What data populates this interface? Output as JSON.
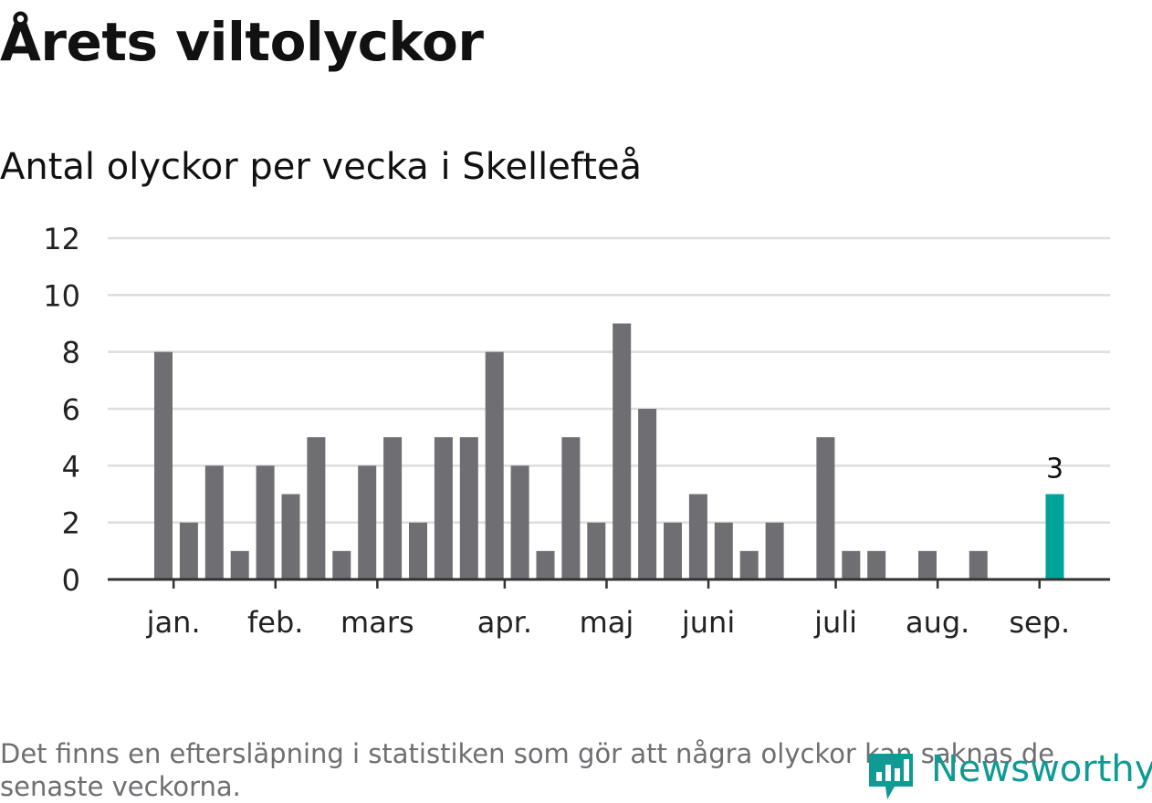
{
  "title": "Årets viltolyckor",
  "subtitle": "Antal olyckor per vecka i Skellefteå",
  "footnote": "Det finns en eftersläpning i statistiken som gör att några olyckor kan saknas de senaste veckorna.",
  "logo": {
    "text": "Newsworthy",
    "icon": "newsworthy-logo-icon",
    "color": "#0f9a94"
  },
  "colors": {
    "bar": "#6f6e73",
    "highlight": "#00a39a",
    "grid": "#dddddd",
    "axis": "#333333"
  },
  "chart_data": {
    "type": "bar",
    "title": "Årets viltolyckor",
    "subtitle": "Antal olyckor per vecka i Skellefteå",
    "xlabel": "",
    "ylabel": "",
    "ylim": [
      0,
      12
    ],
    "yticks": [
      0,
      2,
      4,
      6,
      8,
      10,
      12
    ],
    "grid": true,
    "weeks": [
      2,
      3,
      4,
      5,
      6,
      7,
      8,
      9,
      10,
      11,
      12,
      13,
      14,
      15,
      16,
      17,
      18,
      19,
      20,
      21,
      22,
      23,
      24,
      25,
      26,
      27,
      28,
      29,
      30,
      31,
      32,
      33,
      34,
      35,
      36,
      37
    ],
    "values": [
      8,
      2,
      4,
      1,
      4,
      3,
      5,
      1,
      4,
      5,
      2,
      5,
      5,
      8,
      4,
      1,
      5,
      2,
      9,
      6,
      2,
      3,
      2,
      1,
      2,
      0,
      5,
      1,
      1,
      0,
      1,
      0,
      1,
      0,
      0,
      3
    ],
    "highlight_index": 35,
    "data_labels": [
      {
        "index": 35,
        "text": "3"
      }
    ],
    "month_ticks": [
      {
        "label": "jan.",
        "week": 2.4
      },
      {
        "label": "feb.",
        "week": 6.4
      },
      {
        "label": "mars",
        "week": 10.4
      },
      {
        "label": "apr.",
        "week": 15.4
      },
      {
        "label": "maj",
        "week": 19.4
      },
      {
        "label": "juni",
        "week": 23.4
      },
      {
        "label": "juli",
        "week": 28.4
      },
      {
        "label": "aug.",
        "week": 32.4
      },
      {
        "label": "sep.",
        "week": 36.4
      }
    ]
  }
}
